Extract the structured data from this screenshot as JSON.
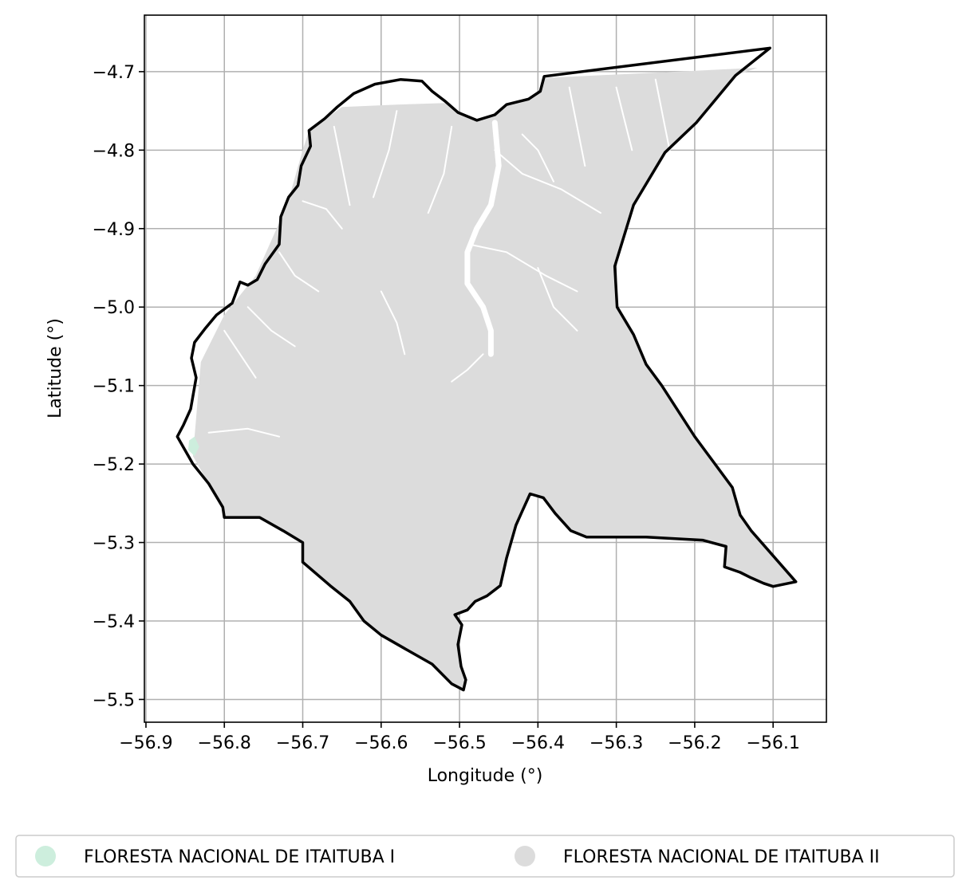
{
  "map": {
    "xlabel": "Longitude (°)",
    "ylabel": "Latitude (°)",
    "xlim": [
      -56.902,
      -56.032
    ],
    "ylim": [
      -5.529,
      -4.628
    ],
    "x_ticks": [
      {
        "value": -56.9,
        "label": "−56.9"
      },
      {
        "value": -56.8,
        "label": "−56.8"
      },
      {
        "value": -56.7,
        "label": "−56.7"
      },
      {
        "value": -56.6,
        "label": "−56.6"
      },
      {
        "value": -56.5,
        "label": "−56.5"
      },
      {
        "value": -56.4,
        "label": "−56.4"
      },
      {
        "value": -56.3,
        "label": "−56.3"
      },
      {
        "value": -56.2,
        "label": "−56.2"
      },
      {
        "value": -56.1,
        "label": "−56.1"
      }
    ],
    "y_ticks": [
      {
        "value": -4.7,
        "label": "−4.7"
      },
      {
        "value": -4.8,
        "label": "−4.8"
      },
      {
        "value": -4.9,
        "label": "−4.9"
      },
      {
        "value": -5.0,
        "label": "−5.0"
      },
      {
        "value": -5.1,
        "label": "−5.1"
      },
      {
        "value": -5.2,
        "label": "−5.2"
      },
      {
        "value": -5.3,
        "label": "−5.3"
      },
      {
        "value": -5.4,
        "label": "−5.4"
      },
      {
        "value": -5.5,
        "label": "−5.5"
      }
    ],
    "grid": true,
    "legend_position": "bottom",
    "legend": [
      {
        "label": "FLORESTA NACIONAL DE ITAITUBA I",
        "color": "#cdeedd"
      },
      {
        "label": "FLORESTA NACIONAL DE ITAITUBA II",
        "color": "#dcdcdc"
      }
    ],
    "fill_color": "#dcdcdc",
    "outline_color": "#000000",
    "boundary": [
      [
        -56.392,
        -4.706
      ],
      [
        -56.104,
        -4.67
      ],
      [
        -56.148,
        -4.705
      ],
      [
        -56.198,
        -4.765
      ],
      [
        -56.238,
        -4.803
      ],
      [
        -56.278,
        -4.87
      ],
      [
        -56.302,
        -4.948
      ],
      [
        -56.299,
        -5.0
      ],
      [
        -56.278,
        -5.035
      ],
      [
        -56.262,
        -5.073
      ],
      [
        -56.242,
        -5.1
      ],
      [
        -56.2,
        -5.165
      ],
      [
        -56.152,
        -5.23
      ],
      [
        -56.142,
        -5.265
      ],
      [
        -56.128,
        -5.285
      ],
      [
        -56.071,
        -5.35
      ],
      [
        -56.1,
        -5.356
      ],
      [
        -56.112,
        -5.352
      ],
      [
        -56.128,
        -5.345
      ],
      [
        -56.142,
        -5.338
      ],
      [
        -56.162,
        -5.331
      ],
      [
        -56.16,
        -5.305
      ],
      [
        -56.19,
        -5.297
      ],
      [
        -56.262,
        -5.293
      ],
      [
        -56.338,
        -5.293
      ],
      [
        -56.358,
        -5.285
      ],
      [
        -56.378,
        -5.263
      ],
      [
        -56.393,
        -5.243
      ],
      [
        -56.41,
        -5.238
      ],
      [
        -56.42,
        -5.26
      ],
      [
        -56.428,
        -5.278
      ],
      [
        -56.44,
        -5.32
      ],
      [
        -56.448,
        -5.355
      ],
      [
        -56.465,
        -5.368
      ],
      [
        -56.48,
        -5.375
      ],
      [
        -56.49,
        -5.386
      ],
      [
        -56.506,
        -5.392
      ],
      [
        -56.497,
        -5.405
      ],
      [
        -56.502,
        -5.43
      ],
      [
        -56.498,
        -5.458
      ],
      [
        -56.492,
        -5.475
      ],
      [
        -56.495,
        -5.488
      ],
      [
        -56.51,
        -5.48
      ],
      [
        -56.535,
        -5.455
      ],
      [
        -56.565,
        -5.438
      ],
      [
        -56.6,
        -5.418
      ],
      [
        -56.622,
        -5.4
      ],
      [
        -56.64,
        -5.375
      ],
      [
        -56.665,
        -5.355
      ],
      [
        -56.7,
        -5.325
      ],
      [
        -56.7,
        -5.3
      ],
      [
        -56.725,
        -5.285
      ],
      [
        -56.755,
        -5.268
      ],
      [
        -56.8,
        -5.268
      ],
      [
        -56.802,
        -5.255
      ],
      [
        -56.82,
        -5.225
      ],
      [
        -56.84,
        -5.2
      ],
      [
        -56.86,
        -5.165
      ],
      [
        -56.852,
        -5.15
      ],
      [
        -56.843,
        -5.13
      ],
      [
        -56.836,
        -5.09
      ],
      [
        -56.842,
        -5.065
      ],
      [
        -56.838,
        -5.045
      ],
      [
        -56.825,
        -5.028
      ],
      [
        -56.81,
        -5.01
      ],
      [
        -56.79,
        -4.995
      ],
      [
        -56.78,
        -4.968
      ],
      [
        -56.77,
        -4.972
      ],
      [
        -56.758,
        -4.965
      ],
      [
        -56.748,
        -4.945
      ],
      [
        -56.73,
        -4.92
      ],
      [
        -56.728,
        -4.885
      ],
      [
        -56.718,
        -4.86
      ],
      [
        -56.706,
        -4.845
      ],
      [
        -56.702,
        -4.82
      ],
      [
        -56.69,
        -4.795
      ],
      [
        -56.692,
        -4.775
      ],
      [
        -56.672,
        -4.76
      ],
      [
        -56.656,
        -4.745
      ],
      [
        -56.635,
        -4.728
      ],
      [
        -56.608,
        -4.716
      ],
      [
        -56.575,
        -4.71
      ],
      [
        -56.548,
        -4.712
      ],
      [
        -56.535,
        -4.725
      ],
      [
        -56.518,
        -4.738
      ],
      [
        -56.502,
        -4.752
      ],
      [
        -56.478,
        -4.762
      ],
      [
        -56.455,
        -4.755
      ],
      [
        -56.44,
        -4.742
      ],
      [
        -56.412,
        -4.735
      ],
      [
        -56.397,
        -4.725
      ],
      [
        -56.392,
        -4.706
      ]
    ],
    "fill_polygon": [
      [
        -56.392,
        -4.708
      ],
      [
        -56.12,
        -4.695
      ],
      [
        -56.148,
        -4.705
      ],
      [
        -56.198,
        -4.765
      ],
      [
        -56.238,
        -4.803
      ],
      [
        -56.278,
        -4.87
      ],
      [
        -56.302,
        -4.948
      ],
      [
        -56.299,
        -5.0
      ],
      [
        -56.278,
        -5.035
      ],
      [
        -56.262,
        -5.073
      ],
      [
        -56.242,
        -5.1
      ],
      [
        -56.2,
        -5.165
      ],
      [
        -56.152,
        -5.23
      ],
      [
        -56.142,
        -5.265
      ],
      [
        -56.128,
        -5.285
      ],
      [
        -56.071,
        -5.35
      ],
      [
        -56.1,
        -5.356
      ],
      [
        -56.112,
        -5.352
      ],
      [
        -56.128,
        -5.345
      ],
      [
        -56.142,
        -5.338
      ],
      [
        -56.162,
        -5.331
      ],
      [
        -56.16,
        -5.305
      ],
      [
        -56.19,
        -5.297
      ],
      [
        -56.262,
        -5.293
      ],
      [
        -56.338,
        -5.293
      ],
      [
        -56.358,
        -5.285
      ],
      [
        -56.378,
        -5.263
      ],
      [
        -56.393,
        -5.243
      ],
      [
        -56.41,
        -5.238
      ],
      [
        -56.42,
        -5.26
      ],
      [
        -56.428,
        -5.278
      ],
      [
        -56.44,
        -5.32
      ],
      [
        -56.448,
        -5.355
      ],
      [
        -56.465,
        -5.368
      ],
      [
        -56.48,
        -5.375
      ],
      [
        -56.49,
        -5.386
      ],
      [
        -56.506,
        -5.392
      ],
      [
        -56.497,
        -5.405
      ],
      [
        -56.502,
        -5.43
      ],
      [
        -56.498,
        -5.458
      ],
      [
        -56.492,
        -5.475
      ],
      [
        -56.495,
        -5.488
      ],
      [
        -56.51,
        -5.48
      ],
      [
        -56.535,
        -5.455
      ],
      [
        -56.565,
        -5.438
      ],
      [
        -56.6,
        -5.418
      ],
      [
        -56.622,
        -5.4
      ],
      [
        -56.64,
        -5.375
      ],
      [
        -56.665,
        -5.355
      ],
      [
        -56.7,
        -5.325
      ],
      [
        -56.7,
        -5.3
      ],
      [
        -56.725,
        -5.285
      ],
      [
        -56.755,
        -5.268
      ],
      [
        -56.8,
        -5.268
      ],
      [
        -56.802,
        -5.255
      ],
      [
        -56.82,
        -5.225
      ],
      [
        -56.84,
        -5.19
      ],
      [
        -56.835,
        -5.13
      ],
      [
        -56.83,
        -5.07
      ],
      [
        -56.8,
        -5.01
      ],
      [
        -56.76,
        -4.96
      ],
      [
        -56.72,
        -4.87
      ],
      [
        -56.7,
        -4.8
      ],
      [
        -56.692,
        -4.775
      ],
      [
        -56.65,
        -4.745
      ],
      [
        -56.58,
        -4.742
      ],
      [
        -56.518,
        -4.74
      ],
      [
        -56.502,
        -4.752
      ],
      [
        -56.478,
        -4.762
      ],
      [
        -56.455,
        -4.755
      ],
      [
        -56.44,
        -4.742
      ],
      [
        -56.412,
        -4.735
      ],
      [
        -56.397,
        -4.725
      ],
      [
        -56.392,
        -4.708
      ]
    ],
    "itaituba_i_patch": [
      [
        -56.845,
        -5.17
      ],
      [
        -56.838,
        -5.165
      ],
      [
        -56.832,
        -5.178
      ],
      [
        -56.838,
        -5.19
      ],
      [
        -56.846,
        -5.182
      ]
    ],
    "rivers": [
      [
        [
          -56.455,
          -4.765
        ],
        [
          -56.45,
          -4.82
        ],
        [
          -56.46,
          -4.87
        ],
        [
          -56.478,
          -4.9
        ],
        [
          -56.49,
          -4.93
        ],
        [
          -56.49,
          -4.97
        ],
        [
          -56.47,
          -5.0
        ],
        [
          -56.46,
          -5.03
        ],
        [
          -56.46,
          -5.06
        ]
      ],
      [
        [
          -56.455,
          -4.8
        ],
        [
          -56.42,
          -4.83
        ],
        [
          -56.37,
          -4.85
        ],
        [
          -56.32,
          -4.88
        ]
      ],
      [
        [
          -56.488,
          -4.92
        ],
        [
          -56.44,
          -4.93
        ],
        [
          -56.39,
          -4.96
        ],
        [
          -56.35,
          -4.98
        ]
      ],
      [
        [
          -56.51,
          -4.77
        ],
        [
          -56.52,
          -4.83
        ],
        [
          -56.54,
          -4.88
        ]
      ],
      [
        [
          -56.58,
          -4.75
        ],
        [
          -56.59,
          -4.8
        ],
        [
          -56.61,
          -4.86
        ]
      ],
      [
        [
          -56.66,
          -4.77
        ],
        [
          -56.65,
          -4.82
        ],
        [
          -56.64,
          -4.87
        ]
      ],
      [
        [
          -56.3,
          -4.72
        ],
        [
          -56.29,
          -4.76
        ],
        [
          -56.28,
          -4.8
        ]
      ],
      [
        [
          -56.25,
          -4.71
        ],
        [
          -56.24,
          -4.76
        ],
        [
          -56.23,
          -4.81
        ]
      ],
      [
        [
          -56.36,
          -4.72
        ],
        [
          -56.35,
          -4.77
        ],
        [
          -56.34,
          -4.82
        ]
      ],
      [
        [
          -56.7,
          -4.865
        ],
        [
          -56.67,
          -4.875
        ],
        [
          -56.65,
          -4.9
        ]
      ],
      [
        [
          -56.77,
          -5.0
        ],
        [
          -56.74,
          -5.03
        ],
        [
          -56.71,
          -5.05
        ]
      ],
      [
        [
          -56.8,
          -5.03
        ],
        [
          -56.78,
          -5.06
        ],
        [
          -56.76,
          -5.09
        ]
      ],
      [
        [
          -56.82,
          -5.16
        ],
        [
          -56.77,
          -5.155
        ],
        [
          -56.73,
          -5.165
        ]
      ],
      [
        [
          -56.73,
          -4.93
        ],
        [
          -56.71,
          -4.96
        ],
        [
          -56.68,
          -4.98
        ]
      ],
      [
        [
          -56.47,
          -5.06
        ],
        [
          -56.49,
          -5.08
        ],
        [
          -56.51,
          -5.095
        ]
      ],
      [
        [
          -56.6,
          -4.98
        ],
        [
          -56.58,
          -5.02
        ],
        [
          -56.57,
          -5.06
        ]
      ],
      [
        [
          -56.4,
          -4.95
        ],
        [
          -56.38,
          -5.0
        ],
        [
          -56.35,
          -5.03
        ]
      ],
      [
        [
          -56.42,
          -4.78
        ],
        [
          -56.4,
          -4.8
        ],
        [
          -56.38,
          -4.84
        ]
      ]
    ]
  }
}
